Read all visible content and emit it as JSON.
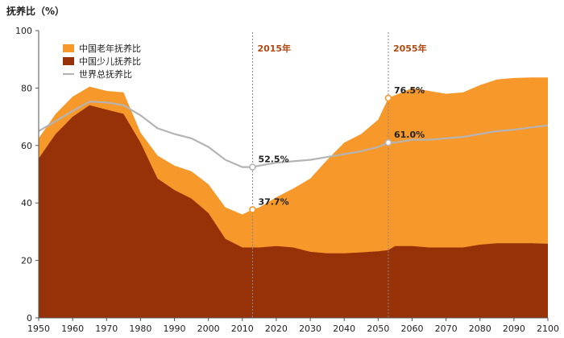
{
  "chart_data": {
    "type": "area",
    "ylabel": "抚养比（%）",
    "ylim": [
      0,
      100
    ],
    "yticks": [
      0,
      20,
      40,
      60,
      80,
      100
    ],
    "xlim": [
      1950,
      2100
    ],
    "xticks": [
      1950,
      1960,
      1970,
      1980,
      1990,
      2000,
      2010,
      2020,
      2030,
      2040,
      2050,
      2060,
      2070,
      2080,
      2090,
      2100
    ],
    "x": [
      1950,
      1955,
      1960,
      1965,
      1970,
      1975,
      1980,
      1985,
      1990,
      1995,
      2000,
      2005,
      2010,
      2013,
      2015,
      2020,
      2025,
      2030,
      2035,
      2040,
      2045,
      2050,
      2053,
      2055,
      2060,
      2065,
      2070,
      2075,
      2080,
      2085,
      2090,
      2095,
      2100
    ],
    "series": [
      {
        "name": "中国少儿抚养比",
        "color": "#963108",
        "values": [
          55.5,
          64,
          70,
          74,
          72.5,
          71,
          61,
          48.5,
          44.5,
          41.5,
          36.5,
          27.5,
          24.5,
          24.5,
          24.5,
          25,
          24.5,
          23,
          22.5,
          22.5,
          22.8,
          23.2,
          23.6,
          25,
          25,
          24.5,
          24.5,
          24.5,
          25.5,
          26,
          26,
          26,
          25.8
        ]
      },
      {
        "name": "中国老年抚养比",
        "color": "#f7982a",
        "values": [
          62.5,
          71,
          77,
          80.5,
          79,
          78.5,
          64.5,
          56.5,
          53,
          51,
          46.5,
          38.5,
          36,
          37.7,
          38.5,
          42,
          45,
          48.5,
          55,
          61,
          64,
          69,
          76.5,
          77.5,
          80,
          79,
          78,
          78.5,
          81,
          83,
          83.5,
          83.7,
          83.7
        ]
      },
      {
        "name": "世界总抚养比",
        "color": "#b4b4b4",
        "values": [
          65,
          68.5,
          72,
          75.3,
          75,
          74,
          70.5,
          66,
          64,
          62.5,
          59.5,
          55,
          52.5,
          52.5,
          53,
          54,
          54.5,
          55,
          56,
          57,
          58,
          59.5,
          61,
          61,
          62,
          62,
          62.5,
          63,
          64,
          65,
          65.5,
          66.3,
          67
        ]
      }
    ],
    "annotations": [
      {
        "x": 2013,
        "label": "2015年"
      },
      {
        "x": 2053,
        "label": "2055年"
      }
    ],
    "points": [
      {
        "x": 2013,
        "y": 52.5,
        "label": "52.5%",
        "series": "世界总抚养比"
      },
      {
        "x": 2013,
        "y": 37.7,
        "label": "37.7%",
        "series": "中国老年抚养比"
      },
      {
        "x": 2053,
        "y": 76.5,
        "label": "76.5%",
        "series": "中国老年抚养比"
      },
      {
        "x": 2053,
        "y": 61.0,
        "label": "61.0%",
        "series": "世界总抚养比"
      }
    ],
    "legend": "top-left"
  }
}
